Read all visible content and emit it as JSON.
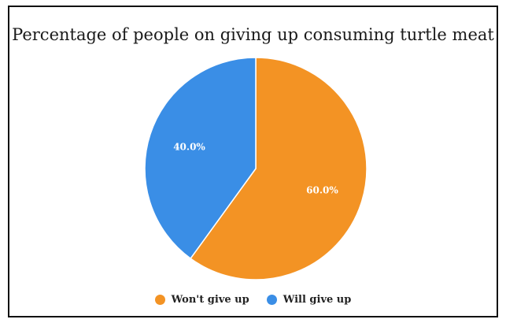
{
  "chart_data": {
    "type": "pie",
    "title": "Percentage of people on giving up consuming turtle meat",
    "slices": [
      {
        "name": "Won't give up",
        "value": 60.0,
        "label": "60.0%",
        "color": "#f39324"
      },
      {
        "name": "Will give up",
        "value": 40.0,
        "label": "40.0%",
        "color": "#3a8ee6"
      }
    ],
    "start_angle_deg": 0,
    "direction": "clockwise",
    "legend_position": "bottom"
  }
}
